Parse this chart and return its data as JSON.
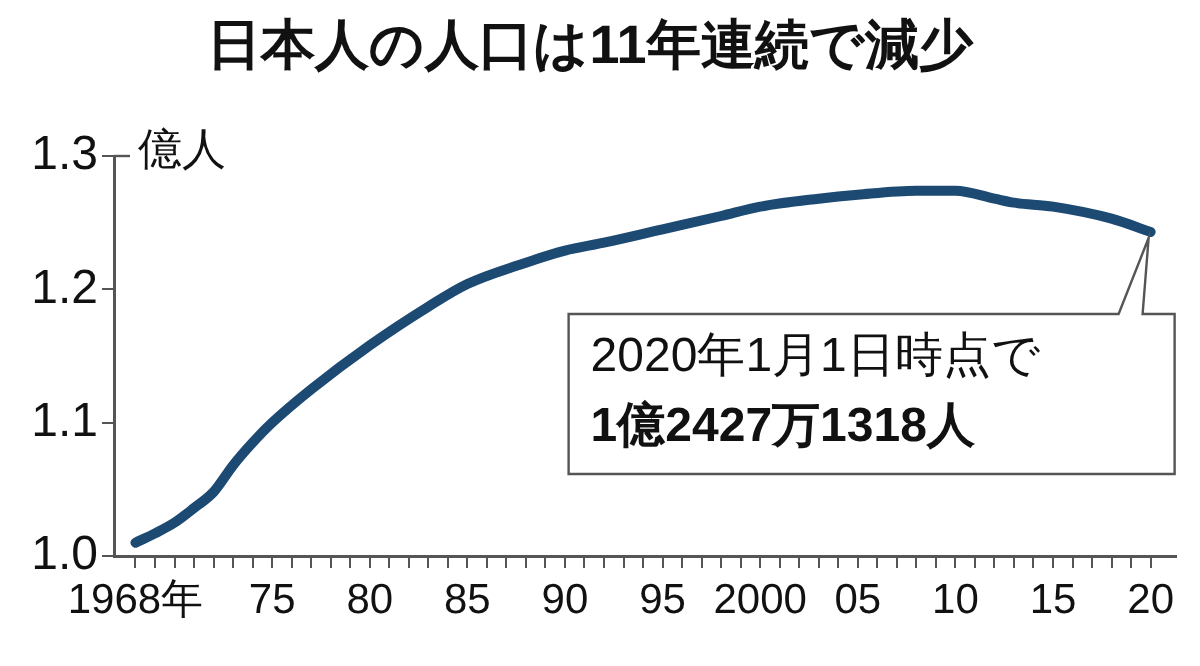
{
  "chart_data": {
    "type": "line",
    "title": "日本人の人口は11年連続で減少",
    "ylabel": "億人",
    "x": [
      1968,
      1969,
      1970,
      1971,
      1972,
      1973,
      1974,
      1975,
      1977,
      1980,
      1983,
      1985,
      1988,
      1990,
      1992,
      1995,
      1998,
      2000,
      2003,
      2005,
      2008,
      2010,
      2012,
      2013,
      2015,
      2018,
      2020
    ],
    "series": [
      {
        "color": "#1d4a73",
        "values": [
          1.01,
          1.017,
          1.025,
          1.036,
          1.048,
          1.068,
          1.085,
          1.1,
          1.125,
          1.158,
          1.187,
          1.204,
          1.22,
          1.229,
          1.235,
          1.245,
          1.255,
          1.262,
          1.268,
          1.271,
          1.274,
          1.274,
          1.268,
          1.265,
          1.262,
          1.253,
          1.243
        ]
      }
    ],
    "xlim": [
      1966.9,
      2021.3
    ],
    "ylim": [
      1.0,
      1.3
    ],
    "xticks": [
      {
        "value": 1968,
        "label": "1968年"
      },
      {
        "value": 1969,
        "label": null
      },
      {
        "value": 1970,
        "label": null
      },
      {
        "value": 1971,
        "label": null
      },
      {
        "value": 1972,
        "label": null
      },
      {
        "value": 1973,
        "label": null
      },
      {
        "value": 1974,
        "label": null
      },
      {
        "value": 1975,
        "label": "75"
      },
      {
        "value": 1976,
        "label": null
      },
      {
        "value": 1977,
        "label": null
      },
      {
        "value": 1978,
        "label": null
      },
      {
        "value": 1979,
        "label": null
      },
      {
        "value": 1980,
        "label": "80"
      },
      {
        "value": 1981,
        "label": null
      },
      {
        "value": 1982,
        "label": null
      },
      {
        "value": 1983,
        "label": null
      },
      {
        "value": 1984,
        "label": null
      },
      {
        "value": 1985,
        "label": "85"
      },
      {
        "value": 1986,
        "label": null
      },
      {
        "value": 1987,
        "label": null
      },
      {
        "value": 1988,
        "label": null
      },
      {
        "value": 1989,
        "label": null
      },
      {
        "value": 1990,
        "label": "90"
      },
      {
        "value": 1991,
        "label": null
      },
      {
        "value": 1992,
        "label": null
      },
      {
        "value": 1993,
        "label": null
      },
      {
        "value": 1994,
        "label": null
      },
      {
        "value": 1995,
        "label": "95"
      },
      {
        "value": 1996,
        "label": null
      },
      {
        "value": 1997,
        "label": null
      },
      {
        "value": 1998,
        "label": null
      },
      {
        "value": 1999,
        "label": null
      },
      {
        "value": 2000,
        "label": "2000"
      },
      {
        "value": 2001,
        "label": null
      },
      {
        "value": 2002,
        "label": null
      },
      {
        "value": 2003,
        "label": null
      },
      {
        "value": 2004,
        "label": null
      },
      {
        "value": 2005,
        "label": "05"
      },
      {
        "value": 2006,
        "label": null
      },
      {
        "value": 2007,
        "label": null
      },
      {
        "value": 2008,
        "label": null
      },
      {
        "value": 2009,
        "label": null
      },
      {
        "value": 2010,
        "label": "10"
      },
      {
        "value": 2011,
        "label": null
      },
      {
        "value": 2012,
        "label": null
      },
      {
        "value": 2013,
        "label": null
      },
      {
        "value": 2014,
        "label": null
      },
      {
        "value": 2015,
        "label": "15"
      },
      {
        "value": 2016,
        "label": null
      },
      {
        "value": 2017,
        "label": null
      },
      {
        "value": 2018,
        "label": null
      },
      {
        "value": 2019,
        "label": null
      },
      {
        "value": 2020,
        "label": "20"
      }
    ],
    "yticks": [
      {
        "value": 1.0,
        "label": "1.0"
      },
      1.1,
      1.2,
      1.3
    ],
    "annotations": [
      "2020年1月1日時点で\n1億2427万1318人"
    ],
    "grid": false,
    "legend": false,
    "marker": "none",
    "line_style": "solid"
  }
}
